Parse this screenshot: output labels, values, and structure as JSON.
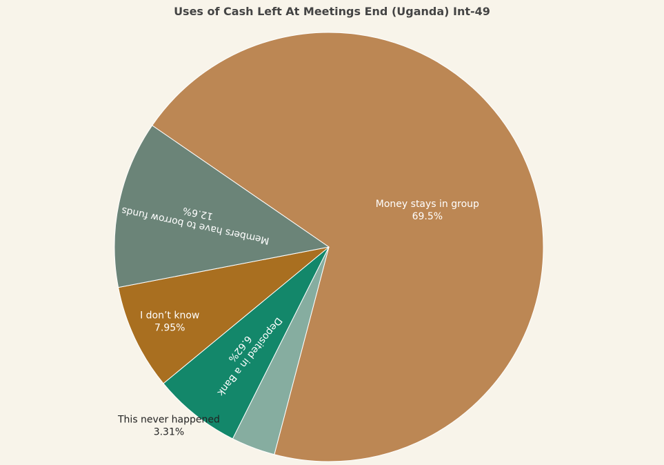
{
  "chart_data": {
    "type": "pie",
    "title": "Uses of Cash Left At Meetings End (Uganda) Int-49",
    "slices": [
      {
        "label": "Money stays in group",
        "value": 69.5,
        "value_label": "69.5%",
        "color": "#bc8754",
        "label_color": "#ffffff",
        "label_mode": "inside"
      },
      {
        "label": "This never happened",
        "value": 3.31,
        "value_label": "3.31%",
        "color": "#86ada0",
        "label_color": "#222222",
        "label_mode": "outside"
      },
      {
        "label": "Deposited in a Bank",
        "value": 6.62,
        "value_label": "6.62%",
        "color": "#13876a",
        "label_color": "#ffffff",
        "label_mode": "inside-radial"
      },
      {
        "label": "I don’t know",
        "value": 7.95,
        "value_label": "7.95%",
        "color": "#a96f20",
        "label_color": "#ffffff",
        "label_mode": "inside"
      },
      {
        "label": "Members have to borrow funds",
        "value": 12.6,
        "value_label": "12.6%",
        "color": "#6b8478",
        "label_color": "#ffffff",
        "label_mode": "inside-radial"
      }
    ],
    "legend": false
  }
}
